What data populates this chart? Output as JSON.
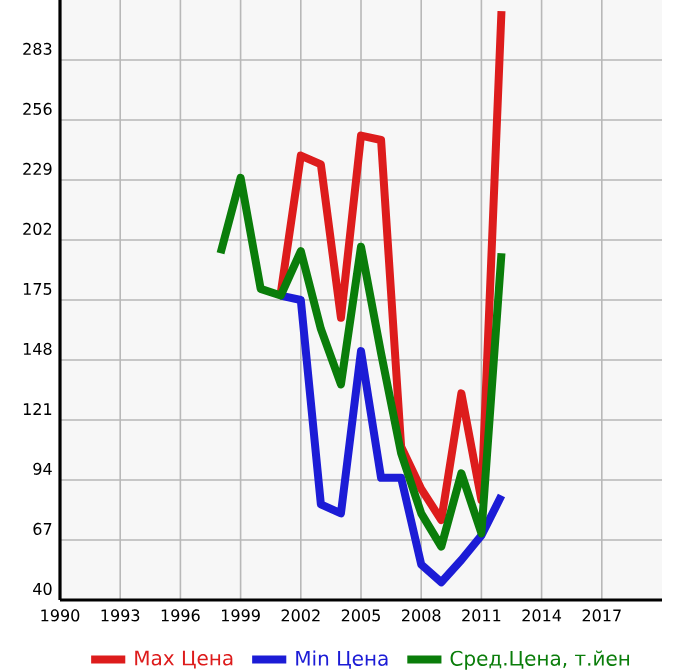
{
  "chart_data": {
    "type": "line",
    "xlim": [
      1990,
      2020
    ],
    "xticks": [
      1990,
      1993,
      1996,
      1999,
      2002,
      2005,
      2008,
      2011,
      2014,
      2017
    ],
    "ylim": [
      40,
      310
    ],
    "yticks": [
      40,
      67,
      94,
      121,
      148,
      175,
      202,
      229,
      256,
      283
    ],
    "grid": true,
    "legend": "bottom",
    "marker": "none",
    "line_style": "solid",
    "series": [
      {
        "name": "Max Цена",
        "color": "#dd1c1c",
        "x": [
          2001,
          2002,
          2003,
          2004,
          2005,
          2006,
          2007,
          2008,
          2009,
          2010,
          2011,
          2012
        ],
        "values": [
          178,
          240,
          236,
          167,
          249,
          247,
          109,
          90,
          76,
          133,
          85,
          305
        ]
      },
      {
        "name": "Min Цена",
        "color": "#1c1cd6",
        "x": [
          2001,
          2002,
          2003,
          2004,
          2005,
          2006,
          2007,
          2008,
          2009,
          2010,
          2011,
          2012
        ],
        "values": [
          177,
          175,
          83,
          79,
          152,
          95,
          95,
          56,
          48,
          58,
          69,
          87
        ]
      },
      {
        "name": "Сред.Цена, т.йен",
        "color": "#0a7d0a",
        "x": [
          1998,
          1999,
          2000,
          2001,
          2002,
          2003,
          2004,
          2005,
          2006,
          2007,
          2008,
          2009,
          2010,
          2011,
          2012
        ],
        "values": [
          196,
          230,
          180,
          177,
          197,
          162,
          137,
          199,
          151,
          106,
          79,
          64,
          97,
          70,
          196
        ]
      }
    ]
  }
}
